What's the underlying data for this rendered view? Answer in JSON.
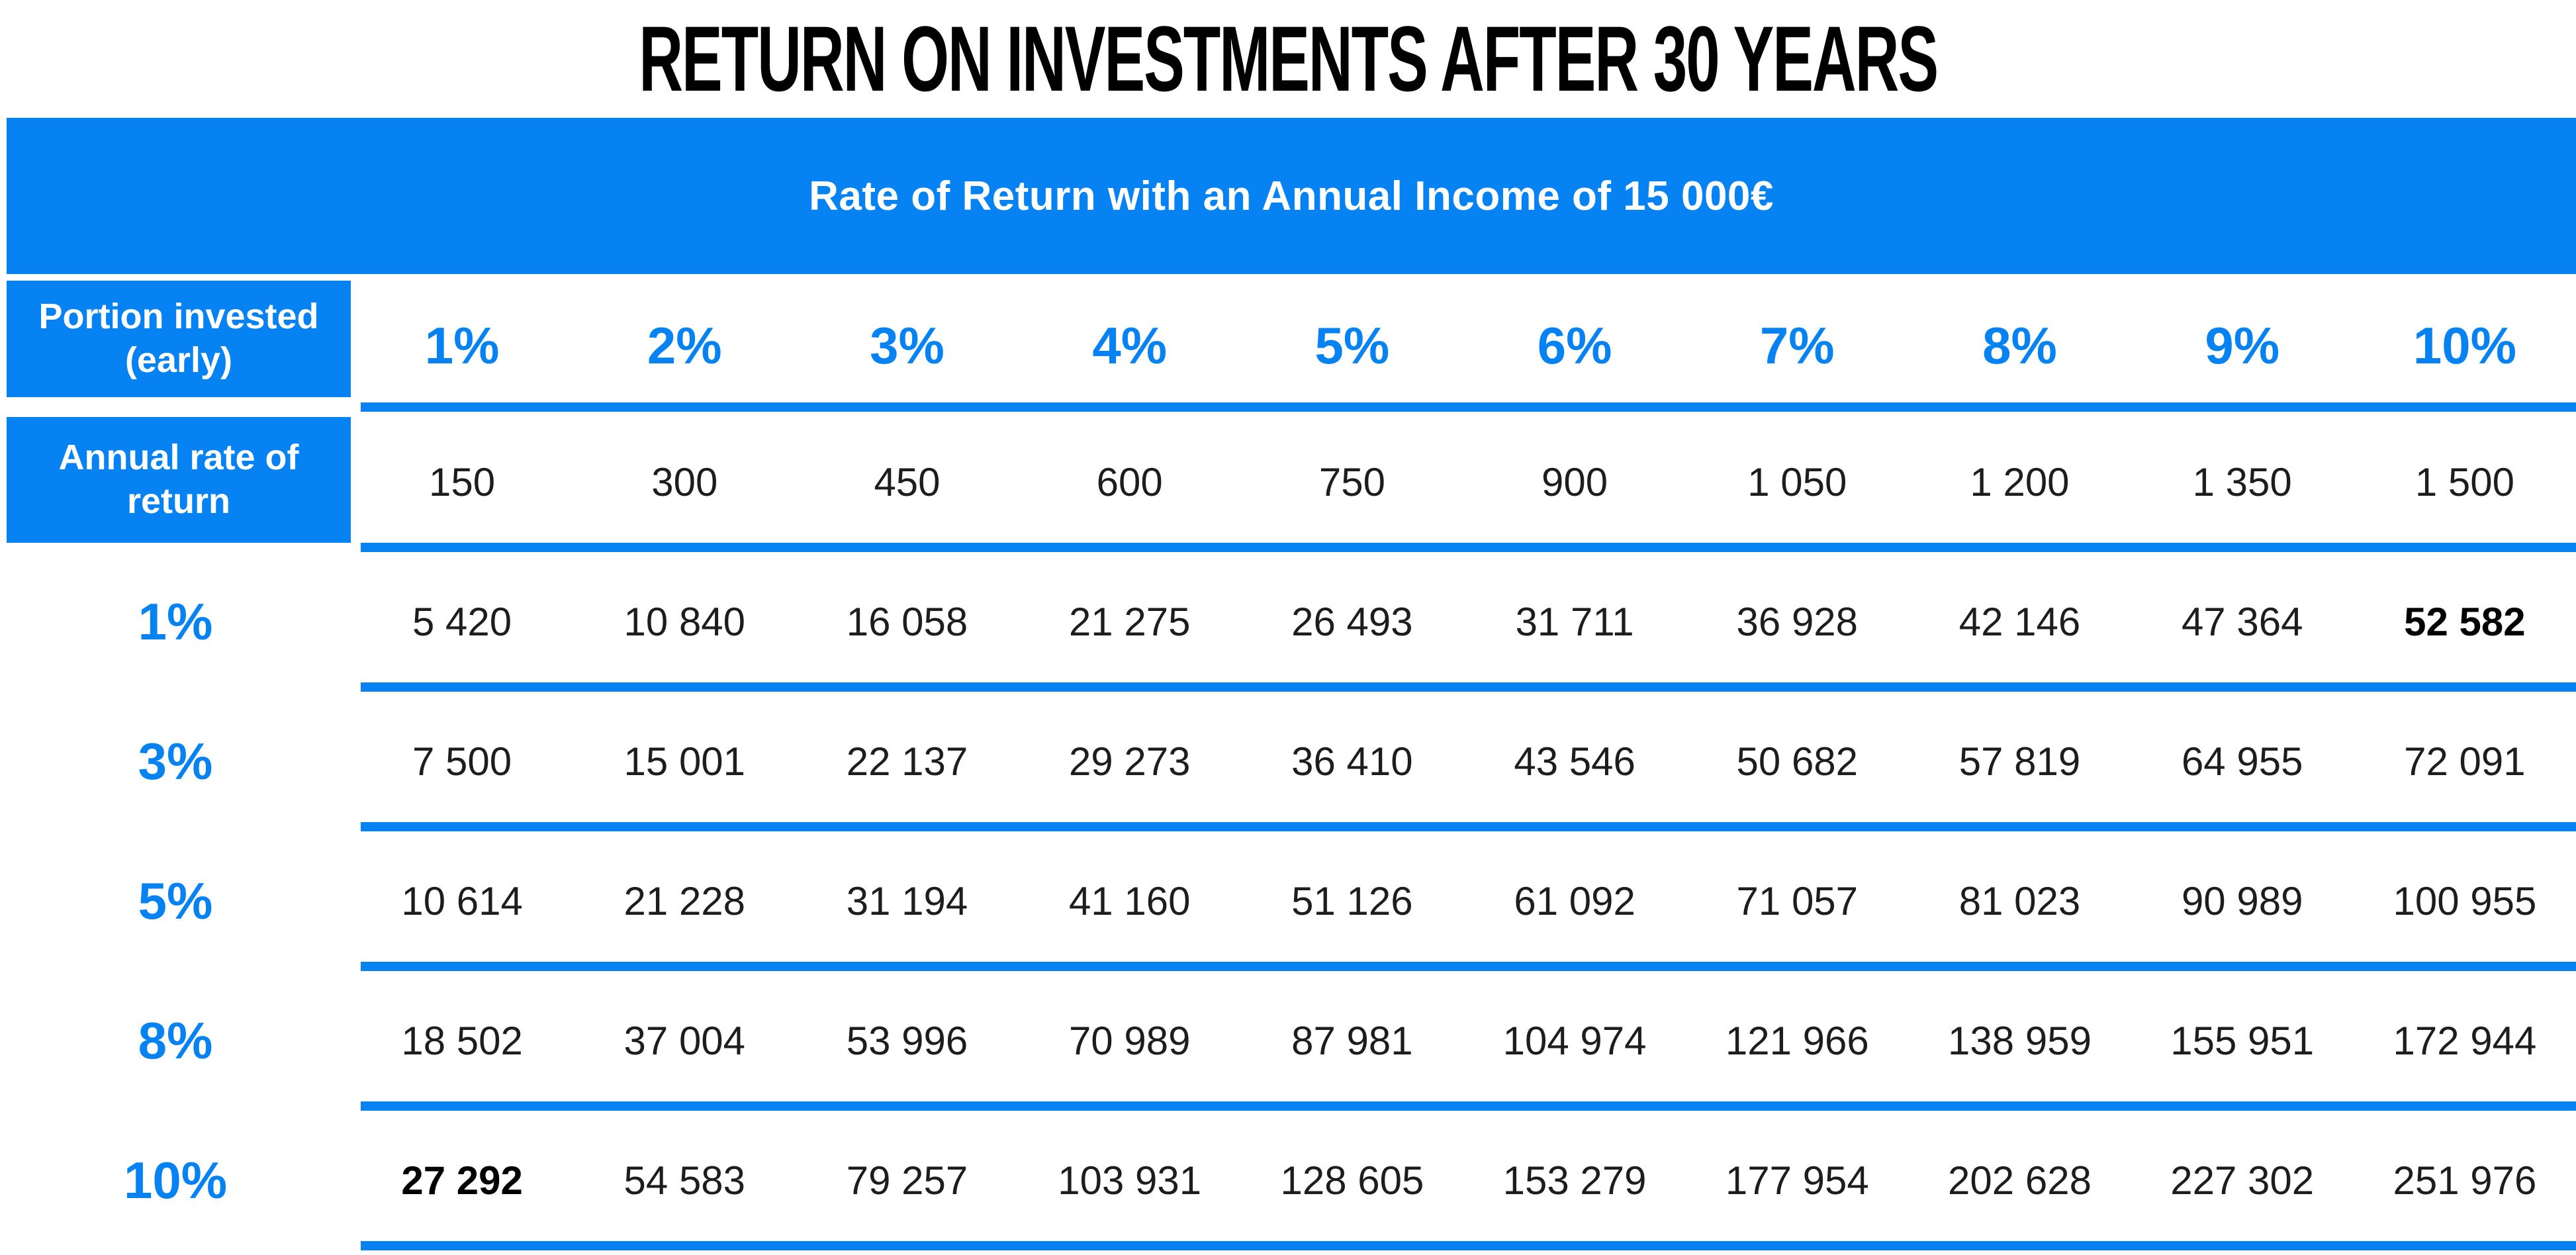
{
  "title": "RETURN ON INVESTMENTS AFTER 30 YEARS",
  "banner": {
    "text": "Rate of Return with an Annual Income of 15 000€"
  },
  "colors": {
    "accent_blue": "#0682F2",
    "body_text": "#1d1d1d",
    "banner_text": "#ffffff"
  },
  "table": {
    "corner_top_label": "Portion invested (early)",
    "corner_bottom_label": "Annual rate of return",
    "column_headers": [
      "1%",
      "2%",
      "3%",
      "4%",
      "5%",
      "6%",
      "7%",
      "8%",
      "9%",
      "10%"
    ],
    "invested_amounts": [
      "150",
      "300",
      "450",
      "600",
      "750",
      "900",
      "1 050",
      "1 200",
      "1 350",
      "1 500"
    ],
    "rows": [
      {
        "label": "1%",
        "values": [
          "5 420",
          "10 840",
          "16 058",
          "21 275",
          "26 493",
          "31 711",
          "36 928",
          "42 146",
          "47 364",
          "52 582"
        ]
      },
      {
        "label": "3%",
        "values": [
          "7 500",
          "15 001",
          "22 137",
          "29 273",
          "36 410",
          "43 546",
          "50 682",
          "57 819",
          "64 955",
          "72 091"
        ]
      },
      {
        "label": "5%",
        "values": [
          "10 614",
          "21 228",
          "31 194",
          "41 160",
          "51 126",
          "61 092",
          "71 057",
          "81 023",
          "90 989",
          "100 955"
        ]
      },
      {
        "label": "8%",
        "values": [
          "18 502",
          "37 004",
          "53 996",
          "70 989",
          "87 981",
          "104 974",
          "121 966",
          "138 959",
          "155 951",
          "172 944"
        ]
      },
      {
        "label": "10%",
        "values": [
          "27 292",
          "54 583",
          "79 257",
          "103 931",
          "128 605",
          "153 279",
          "177 954",
          "202 628",
          "227 302",
          "251 976"
        ]
      }
    ]
  },
  "chart_data": {
    "type": "table",
    "title": "RETURN ON INVESTMENTS AFTER 30 YEARS",
    "subtitle": "Rate of Return with an Annual Income of 15 000€",
    "annual_income_eur": 15000,
    "column_group_label": "Portion invested (early)",
    "row_group_label": "Annual rate of return",
    "columns_portion_invested": [
      "1%",
      "2%",
      "3%",
      "4%",
      "5%",
      "6%",
      "7%",
      "8%",
      "9%",
      "10%"
    ],
    "invested_amount_per_year_eur": [
      150,
      300,
      450,
      600,
      750,
      900,
      1050,
      1200,
      1350,
      1500
    ],
    "rows_annual_rate_of_return": [
      "1%",
      "3%",
      "5%",
      "8%",
      "10%"
    ],
    "values": [
      [
        5420,
        10840,
        16058,
        21275,
        26493,
        31711,
        36928,
        42146,
        47364,
        52582
      ],
      [
        7500,
        15001,
        22137,
        29273,
        36410,
        43546,
        50682,
        57819,
        64955,
        72091
      ],
      [
        10614,
        21228,
        31194,
        41160,
        51126,
        61092,
        71057,
        81023,
        90989,
        100955
      ],
      [
        18502,
        37004,
        53996,
        70989,
        87981,
        104974,
        121966,
        138959,
        155951,
        172944
      ],
      [
        27292,
        54583,
        79257,
        103931,
        128605,
        153279,
        177954,
        202628,
        227302,
        251976
      ]
    ],
    "highlighted_cells": [
      {
        "row": "1%",
        "column": "10%",
        "value": 52582,
        "style": "bold"
      },
      {
        "row": "10%",
        "column": "1%",
        "value": 27292,
        "style": "bold"
      }
    ]
  }
}
